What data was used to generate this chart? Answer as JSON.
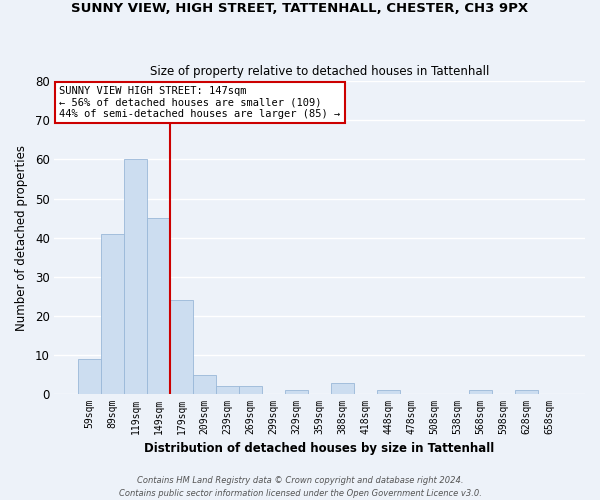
{
  "title": "SUNNY VIEW, HIGH STREET, TATTENHALL, CHESTER, CH3 9PX",
  "subtitle": "Size of property relative to detached houses in Tattenhall",
  "xlabel": "Distribution of detached houses by size in Tattenhall",
  "ylabel": "Number of detached properties",
  "bar_color": "#ccddf0",
  "bar_edge_color": "#9ab8d8",
  "bin_labels": [
    "59sqm",
    "89sqm",
    "119sqm",
    "149sqm",
    "179sqm",
    "209sqm",
    "239sqm",
    "269sqm",
    "299sqm",
    "329sqm",
    "359sqm",
    "388sqm",
    "418sqm",
    "448sqm",
    "478sqm",
    "508sqm",
    "538sqm",
    "568sqm",
    "598sqm",
    "628sqm",
    "658sqm"
  ],
  "bar_heights": [
    9,
    41,
    60,
    45,
    24,
    5,
    2,
    2,
    0,
    1,
    0,
    3,
    0,
    1,
    0,
    0,
    0,
    1,
    0,
    1,
    0
  ],
  "vline_x_index": 3,
  "vline_color": "#cc0000",
  "annotation_line1": "SUNNY VIEW HIGH STREET: 147sqm",
  "annotation_line2": "← 56% of detached houses are smaller (109)",
  "annotation_line3": "44% of semi-detached houses are larger (85) →",
  "annotation_box_color": "white",
  "annotation_box_edge": "#cc0000",
  "ylim": [
    0,
    80
  ],
  "yticks": [
    0,
    10,
    20,
    30,
    40,
    50,
    60,
    70,
    80
  ],
  "footer1": "Contains HM Land Registry data © Crown copyright and database right 2024.",
  "footer2": "Contains public sector information licensed under the Open Government Licence v3.0.",
  "background_color": "#edf2f9",
  "grid_color": "white"
}
